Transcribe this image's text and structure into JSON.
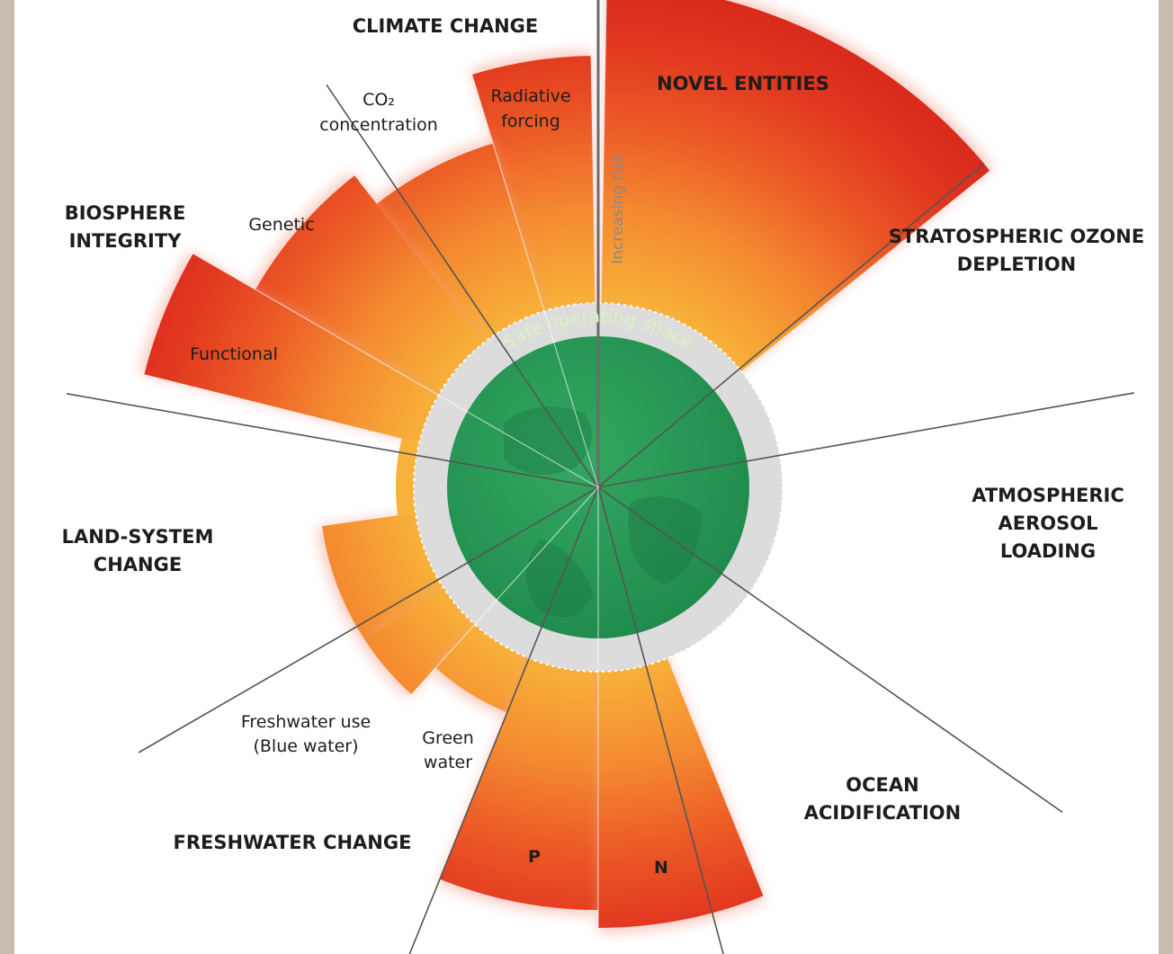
{
  "categories": {
    "climate_change": "CLIMATE CHANGE",
    "novel_entities": "NOVEL ENTITIES",
    "stratospheric_ozone": [
      "STRATOSPHERIC OZONE",
      "DEPLETION"
    ],
    "aerosol": [
      "ATMOSPHERIC",
      "AEROSOL",
      "LOADING"
    ],
    "ocean": [
      "OCEAN",
      "ACIDIFICATION"
    ],
    "freshwater": "FRESHWATER CHANGE",
    "land": [
      "LAND-SYSTEM",
      "CHANGE"
    ],
    "biosphere": [
      "BIOSPHERE",
      "INTEGRITY"
    ]
  },
  "sublabels": {
    "co2": [
      "CO₂",
      "concentration"
    ],
    "radiative": [
      "Radiative",
      "forcing"
    ],
    "genetic": "Genetic",
    "functional": "Functional",
    "blue_water": [
      "Freshwater use",
      "(Blue water)"
    ],
    "green_water": [
      "Green",
      "water"
    ],
    "phosphorus": "P",
    "nitrogen": "N"
  },
  "center_label": "Safe operating space",
  "risk_label": "Increasing risk",
  "colors": {
    "safe": "#2e9e5b",
    "yellow": "#f7b23b",
    "orange": "#f07a2c",
    "red": "#e0341e",
    "grey": "#d9d9d9"
  }
}
